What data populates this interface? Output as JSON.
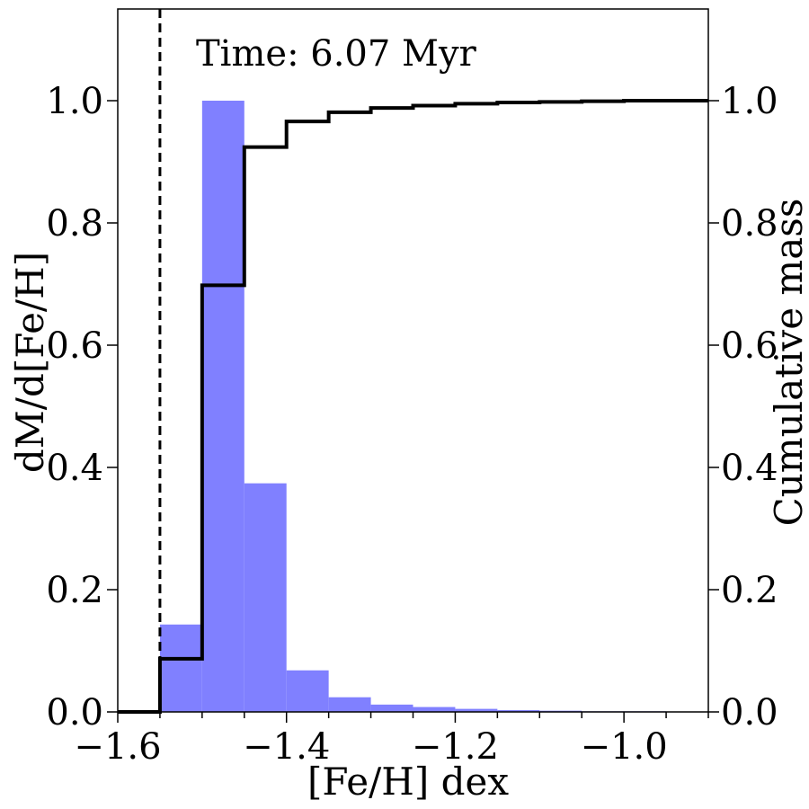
{
  "chart_data": {
    "type": "bar",
    "annotation": "Time: 6.07 Myr",
    "xlabel": "[Fe/H] dex",
    "ylabel": "dM/d[Fe/H]",
    "ylabel_right": "Cumulative mass",
    "xlim": [
      -1.6,
      -0.9
    ],
    "ylim": [
      0.0,
      1.15
    ],
    "xticks": [
      {
        "value": -1.6,
        "label": "−1.6"
      },
      {
        "value": -1.4,
        "label": "−1.4"
      },
      {
        "value": -1.2,
        "label": "−1.2"
      },
      {
        "value": -1.0,
        "label": "−1.0"
      }
    ],
    "yticks": [
      {
        "value": 0.0,
        "label": "0.0"
      },
      {
        "value": 0.2,
        "label": "0.2"
      },
      {
        "value": 0.4,
        "label": "0.4"
      },
      {
        "value": 0.6,
        "label": "0.6"
      },
      {
        "value": 0.8,
        "label": "0.8"
      },
      {
        "value": 1.0,
        "label": "1.0"
      }
    ],
    "yticks_right": [
      {
        "value": 0.0,
        "label": "0.0"
      },
      {
        "value": 0.2,
        "label": "0.2"
      },
      {
        "value": 0.4,
        "label": "0.4"
      },
      {
        "value": 0.6,
        "label": "0.6"
      },
      {
        "value": 0.8,
        "label": "0.8"
      },
      {
        "value": 1.0,
        "label": "1.0"
      }
    ],
    "x_minor_step": 0.05,
    "histogram": {
      "bin_edges": [
        -1.55,
        -1.5,
        -1.45,
        -1.4,
        -1.35,
        -1.3,
        -1.25,
        -1.2,
        -1.15,
        -1.1,
        -1.05,
        -1.0,
        -0.95
      ],
      "values": [
        0.143,
        1.0,
        0.374,
        0.068,
        0.024,
        0.012,
        0.008,
        0.005,
        0.003,
        0.002,
        0.001,
        0.001
      ],
      "color": "#8080ff"
    },
    "cumulative": {
      "x": [
        -1.6,
        -1.55,
        -1.5,
        -1.45,
        -1.4,
        -1.35,
        -1.3,
        -1.25,
        -1.2,
        -1.15,
        -1.1,
        -1.05,
        -1.0,
        -0.95,
        -0.9
      ],
      "y": [
        0.0,
        0.087,
        0.698,
        0.924,
        0.966,
        0.981,
        0.988,
        0.992,
        0.995,
        0.997,
        0.998,
        0.999,
        1.0,
        1.0,
        1.0
      ],
      "color": "#000000"
    },
    "vline": {
      "x": -1.55,
      "style": "dashed",
      "color": "#000000"
    },
    "grid": false
  }
}
